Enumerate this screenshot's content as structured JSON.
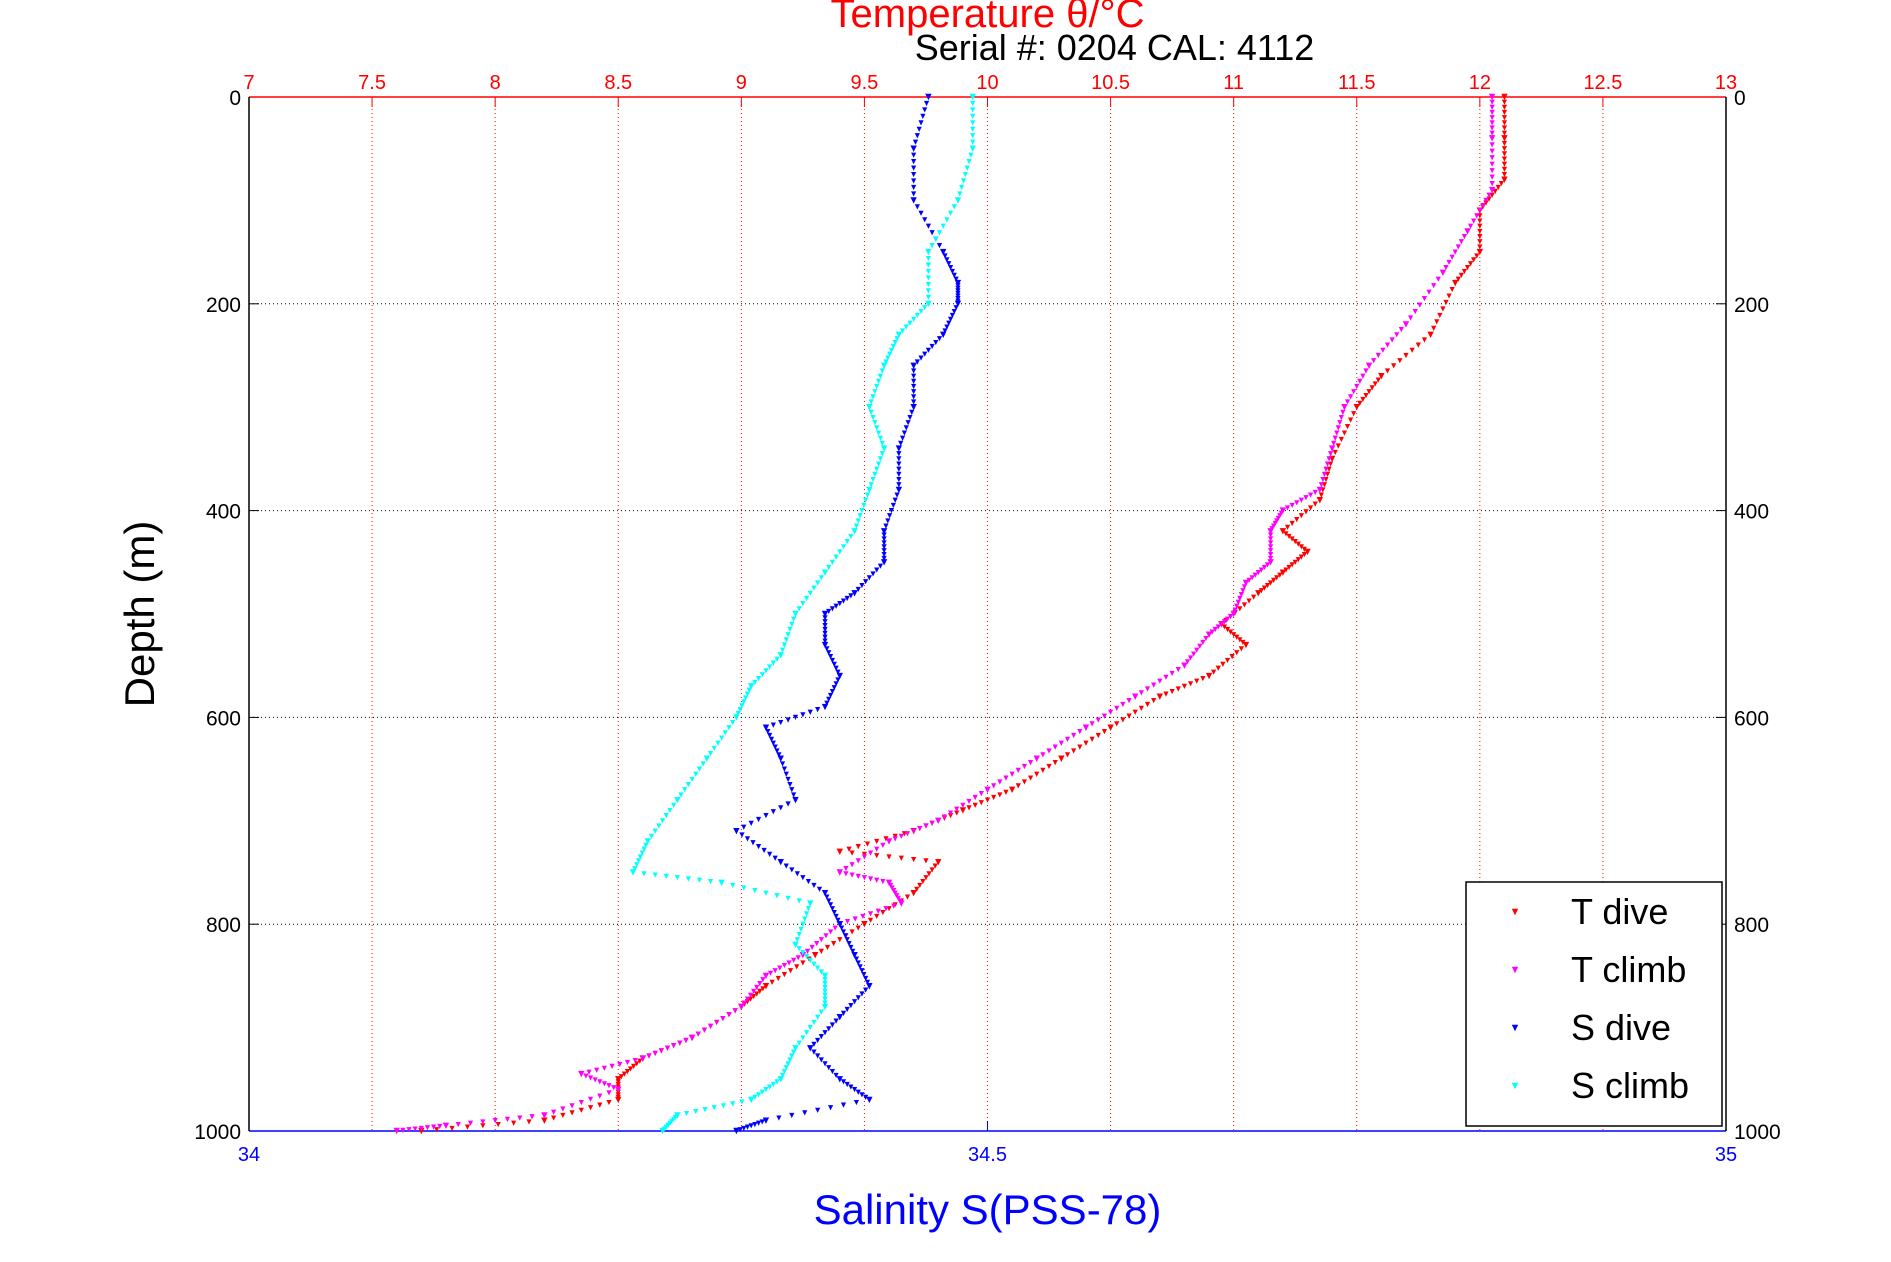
{
  "chart_data": {
    "type": "scatter",
    "title": "Temperature θ/°C",
    "subtitle": "Serial #: 0204  CAL: 4112",
    "xlabel_bottom": "Salinity S(PSS-78)",
    "xlabel_top": "Temperature θ/°C",
    "ylabel": "Depth (m)",
    "xlim_bottom": [
      34,
      35
    ],
    "xlim_top": [
      7,
      13
    ],
    "ylim": [
      0,
      1000
    ],
    "y_reversed": true,
    "grid": true,
    "legend_position": "bottom-right",
    "xticks_bottom": [
      "34",
      "34.5",
      "35"
    ],
    "xticks_top": [
      "7",
      "7.5",
      "8",
      "8.5",
      "9",
      "9.5",
      "10",
      "10.5",
      "11",
      "11.5",
      "12",
      "12.5",
      "13"
    ],
    "yticks": [
      "0",
      "200",
      "400",
      "600",
      "800",
      "1000"
    ],
    "colors": {
      "temperature_axis": "#ff0000",
      "salinity_axis": "#0000ff",
      "axis": "#000000"
    },
    "series": [
      {
        "name": "T dive",
        "axis": "temperature",
        "color": "#ff0000",
        "points": [
          [
            12.1,
            0
          ],
          [
            12.1,
            40
          ],
          [
            12.1,
            80
          ],
          [
            12.0,
            110
          ],
          [
            12.0,
            150
          ],
          [
            11.9,
            180
          ],
          [
            11.8,
            230
          ],
          [
            11.6,
            270
          ],
          [
            11.5,
            300
          ],
          [
            11.4,
            350
          ],
          [
            11.35,
            390
          ],
          [
            11.2,
            420
          ],
          [
            11.3,
            440
          ],
          [
            11.2,
            460
          ],
          [
            11.1,
            480
          ],
          [
            10.95,
            510
          ],
          [
            11.05,
            530
          ],
          [
            10.9,
            560
          ],
          [
            10.7,
            580
          ],
          [
            10.5,
            610
          ],
          [
            10.3,
            640
          ],
          [
            10.1,
            670
          ],
          [
            9.9,
            690
          ],
          [
            9.7,
            710
          ],
          [
            9.4,
            730
          ],
          [
            9.8,
            740
          ],
          [
            9.7,
            770
          ],
          [
            9.5,
            800
          ],
          [
            9.3,
            830
          ],
          [
            9.1,
            860
          ],
          [
            9.0,
            880
          ],
          [
            8.8,
            910
          ],
          [
            8.6,
            930
          ],
          [
            8.5,
            950
          ],
          [
            8.5,
            970
          ],
          [
            8.2,
            990
          ],
          [
            7.7,
            1000
          ]
        ]
      },
      {
        "name": "T climb",
        "axis": "temperature",
        "color": "#ff00ff",
        "points": [
          [
            12.05,
            0
          ],
          [
            12.05,
            40
          ],
          [
            12.05,
            90
          ],
          [
            11.95,
            130
          ],
          [
            11.85,
            170
          ],
          [
            11.7,
            220
          ],
          [
            11.55,
            260
          ],
          [
            11.45,
            300
          ],
          [
            11.4,
            340
          ],
          [
            11.35,
            380
          ],
          [
            11.2,
            400
          ],
          [
            11.15,
            420
          ],
          [
            11.15,
            450
          ],
          [
            11.05,
            470
          ],
          [
            11.0,
            500
          ],
          [
            10.9,
            520
          ],
          [
            10.8,
            550
          ],
          [
            10.6,
            580
          ],
          [
            10.4,
            610
          ],
          [
            10.2,
            640
          ],
          [
            10.0,
            670
          ],
          [
            9.8,
            700
          ],
          [
            9.6,
            720
          ],
          [
            9.4,
            750
          ],
          [
            9.6,
            760
          ],
          [
            9.65,
            780
          ],
          [
            9.4,
            800
          ],
          [
            9.25,
            830
          ],
          [
            9.1,
            850
          ],
          [
            9.0,
            880
          ],
          [
            8.8,
            910
          ],
          [
            8.6,
            930
          ],
          [
            8.35,
            945
          ],
          [
            8.5,
            960
          ],
          [
            8.2,
            985
          ],
          [
            7.8,
            995
          ],
          [
            7.6,
            1000
          ]
        ]
      },
      {
        "name": "S dive",
        "axis": "salinity",
        "color": "#0000ff",
        "points": [
          [
            34.46,
            0
          ],
          [
            34.45,
            50
          ],
          [
            34.45,
            100
          ],
          [
            34.47,
            150
          ],
          [
            34.48,
            180
          ],
          [
            34.48,
            200
          ],
          [
            34.47,
            230
          ],
          [
            34.45,
            260
          ],
          [
            34.45,
            300
          ],
          [
            34.44,
            340
          ],
          [
            34.44,
            380
          ],
          [
            34.43,
            420
          ],
          [
            34.43,
            450
          ],
          [
            34.41,
            480
          ],
          [
            34.39,
            500
          ],
          [
            34.39,
            530
          ],
          [
            34.4,
            560
          ],
          [
            34.39,
            590
          ],
          [
            34.35,
            610
          ],
          [
            34.36,
            640
          ],
          [
            34.37,
            680
          ],
          [
            34.33,
            710
          ],
          [
            34.36,
            740
          ],
          [
            34.39,
            770
          ],
          [
            34.4,
            800
          ],
          [
            34.41,
            830
          ],
          [
            34.42,
            860
          ],
          [
            34.4,
            890
          ],
          [
            34.38,
            920
          ],
          [
            34.4,
            950
          ],
          [
            34.42,
            970
          ],
          [
            34.35,
            990
          ],
          [
            34.33,
            1000
          ]
        ]
      },
      {
        "name": "S climb",
        "axis": "salinity",
        "color": "#00ffff",
        "points": [
          [
            34.49,
            0
          ],
          [
            34.49,
            50
          ],
          [
            34.48,
            100
          ],
          [
            34.46,
            150
          ],
          [
            34.46,
            200
          ],
          [
            34.44,
            230
          ],
          [
            34.43,
            260
          ],
          [
            34.42,
            300
          ],
          [
            34.43,
            340
          ],
          [
            34.42,
            380
          ],
          [
            34.41,
            420
          ],
          [
            34.39,
            460
          ],
          [
            34.37,
            500
          ],
          [
            34.36,
            540
          ],
          [
            34.34,
            570
          ],
          [
            34.33,
            600
          ],
          [
            34.31,
            640
          ],
          [
            34.29,
            680
          ],
          [
            34.27,
            720
          ],
          [
            34.26,
            750
          ],
          [
            34.32,
            760
          ],
          [
            34.38,
            780
          ],
          [
            34.37,
            820
          ],
          [
            34.39,
            850
          ],
          [
            34.39,
            880
          ],
          [
            34.37,
            920
          ],
          [
            34.36,
            950
          ],
          [
            34.34,
            970
          ],
          [
            34.29,
            985
          ],
          [
            34.28,
            1000
          ]
        ]
      }
    ]
  }
}
